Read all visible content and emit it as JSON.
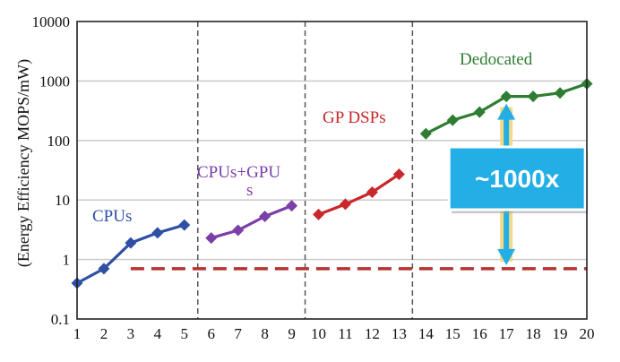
{
  "chart_data": {
    "type": "line",
    "title": "",
    "xlabel": "",
    "ylabel": "(Energy Efficiency MOPS/mW)",
    "yscale": "log",
    "ylim": [
      0.1,
      10000
    ],
    "xlim": [
      1,
      20
    ],
    "yticks": [
      "0.1",
      "1",
      "10",
      "100",
      "1000",
      "10000"
    ],
    "xticks": [
      "1",
      "2",
      "3",
      "4",
      "5",
      "6",
      "7",
      "8",
      "9",
      "10",
      "11",
      "12",
      "13",
      "14",
      "15",
      "16",
      "17",
      "18",
      "19",
      "20"
    ],
    "grid": "horizontal",
    "group_dividers_x": [
      5.5,
      9.5,
      13.5
    ],
    "series": [
      {
        "name": "CPUs",
        "color": "#2e4fa3",
        "x": [
          1,
          2,
          3,
          4,
          5
        ],
        "y": [
          0.4,
          0.7,
          1.9,
          2.8,
          3.8
        ]
      },
      {
        "name": "CPUs+GPU s",
        "color": "#7b3fa8",
        "x": [
          6,
          7,
          8,
          9
        ],
        "y": [
          2.3,
          3.1,
          5.3,
          8.0
        ]
      },
      {
        "name": "GP DSPs",
        "color": "#c8282b",
        "x": [
          10,
          11,
          12,
          13
        ],
        "y": [
          5.7,
          8.5,
          13.5,
          27
        ]
      },
      {
        "name": "Dedocated",
        "color": "#2e7d32",
        "x": [
          14,
          15,
          16,
          17,
          18,
          19,
          20
        ],
        "y": [
          130,
          220,
          300,
          550,
          550,
          630,
          900
        ]
      }
    ],
    "reference_line": {
      "y": 0.7,
      "x": [
        3,
        20
      ],
      "color": "#b83232",
      "style": "dashed"
    },
    "annotations": [
      {
        "text": "~1000x",
        "x": 17,
        "y_from": 0.7,
        "y_to": 550,
        "box_color": "#23aee5"
      }
    ]
  }
}
